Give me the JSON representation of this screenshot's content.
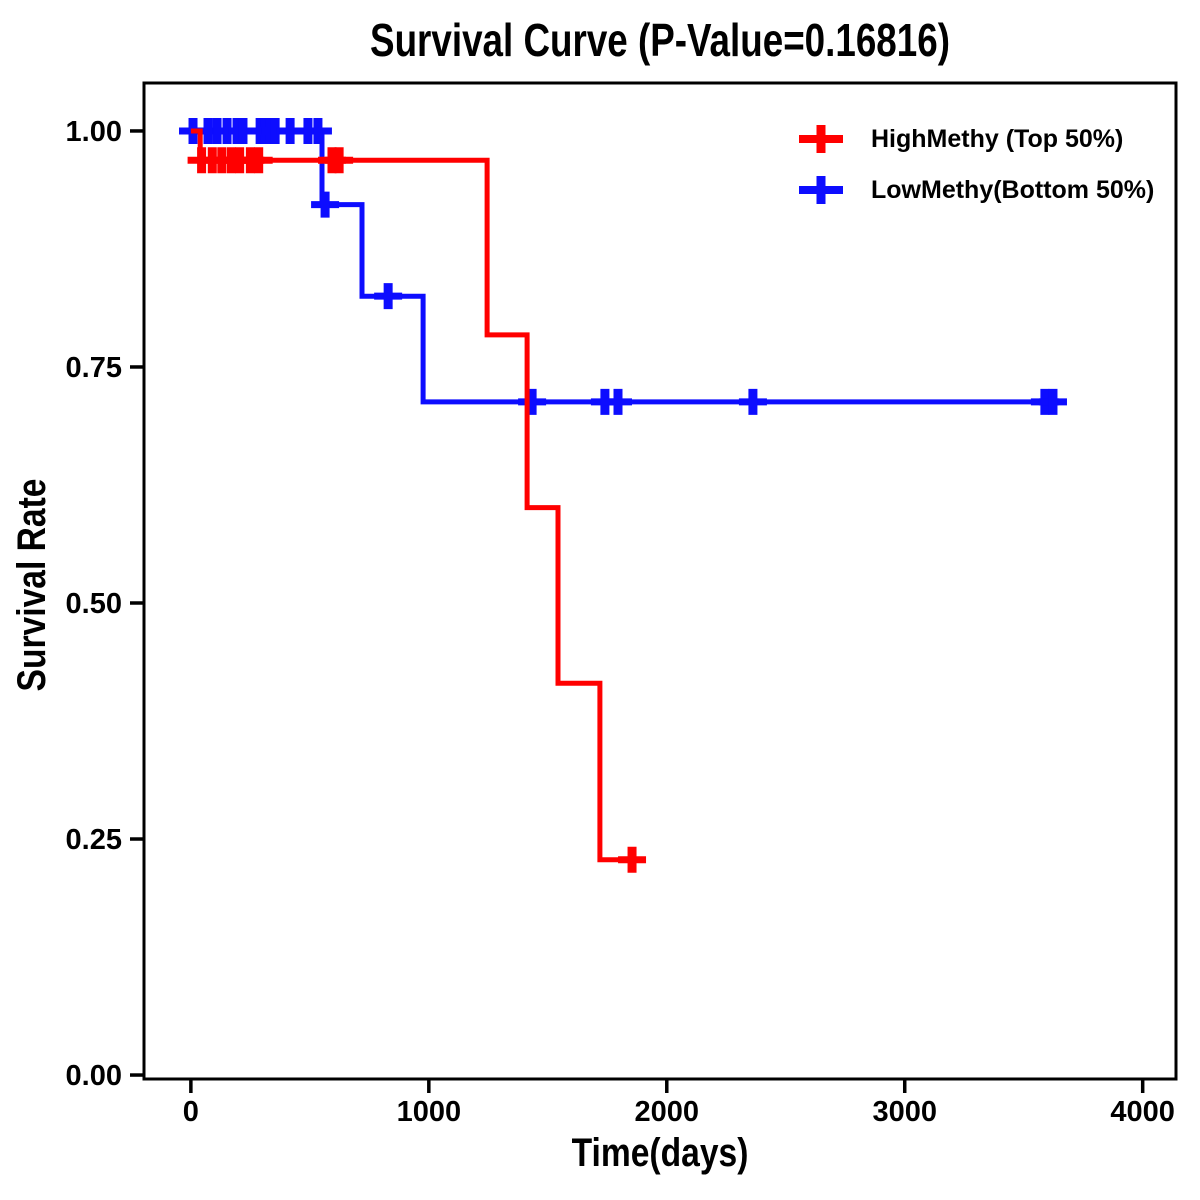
{
  "page": {
    "background": "#FFFFFF",
    "p_value": "0.16816"
  },
  "chart_data": {
    "type": "line",
    "subtype": "kaplan_meier_step_curve",
    "title": "Survival Curve (P-Value=0.16816)",
    "xlabel": "Time(days)",
    "ylabel": "Survival Rate",
    "grid": false,
    "legend_position": "top-right",
    "axis_color": "#000000",
    "xlim": [
      -197,
      4140
    ],
    "ylim": [
      -0.0042,
      1.0508
    ],
    "x_ticks": [
      0,
      1000,
      2000,
      3000,
      4000
    ],
    "x_tick_labels": [
      "0",
      "1000",
      "2000",
      "3000",
      "4000"
    ],
    "y_ticks": [
      1.0,
      0.75,
      0.5,
      0.25,
      0.0
    ],
    "y_tick_labels": [
      "1.00",
      "0.75",
      "0.50",
      "0.25",
      "0.00"
    ],
    "series": [
      {
        "name": "HighMethy (Top 50%)",
        "color": "#FF0000",
        "steps": [
          [
            0,
            1.0
          ],
          [
            39,
            1.0
          ],
          [
            39,
            0.969
          ],
          [
            1245,
            0.969
          ],
          [
            1245,
            0.784
          ],
          [
            1413,
            0.784
          ],
          [
            1413,
            0.601
          ],
          [
            1543,
            0.601
          ],
          [
            1543,
            0.415
          ],
          [
            1719,
            0.415
          ],
          [
            1719,
            0.228
          ],
          [
            1908,
            0.228
          ]
        ],
        "censors": [
          [
            45,
            0.969
          ],
          [
            90,
            0.969
          ],
          [
            130,
            0.969
          ],
          [
            170,
            0.969
          ],
          [
            205,
            0.969
          ],
          [
            250,
            0.969
          ],
          [
            285,
            0.969
          ],
          [
            593,
            0.969
          ],
          [
            623,
            0.969
          ],
          [
            1854,
            0.228
          ]
        ]
      },
      {
        "name": "LowMethy(Bottom 50%)",
        "color": "#0D0DFF",
        "steps": [
          [
            0,
            1.0
          ],
          [
            551,
            1.0
          ],
          [
            551,
            0.922
          ],
          [
            719,
            0.922
          ],
          [
            719,
            0.825
          ],
          [
            976,
            0.825
          ],
          [
            976,
            0.713
          ],
          [
            3673,
            0.713
          ]
        ],
        "censors": [
          [
            9,
            1.0
          ],
          [
            72,
            1.0
          ],
          [
            110,
            1.0
          ],
          [
            152,
            1.0
          ],
          [
            194,
            1.0
          ],
          [
            219,
            1.0
          ],
          [
            291,
            1.0
          ],
          [
            312,
            1.0
          ],
          [
            333,
            1.0
          ],
          [
            354,
            1.0
          ],
          [
            417,
            1.0
          ],
          [
            492,
            1.0
          ],
          [
            534,
            1.0
          ],
          [
            564,
            0.922
          ],
          [
            829,
            0.825
          ],
          [
            1434,
            0.713
          ],
          [
            1740,
            0.713
          ],
          [
            1795,
            0.713
          ],
          [
            2362,
            0.713
          ],
          [
            3589,
            0.713
          ],
          [
            3623,
            0.713
          ]
        ]
      }
    ]
  }
}
